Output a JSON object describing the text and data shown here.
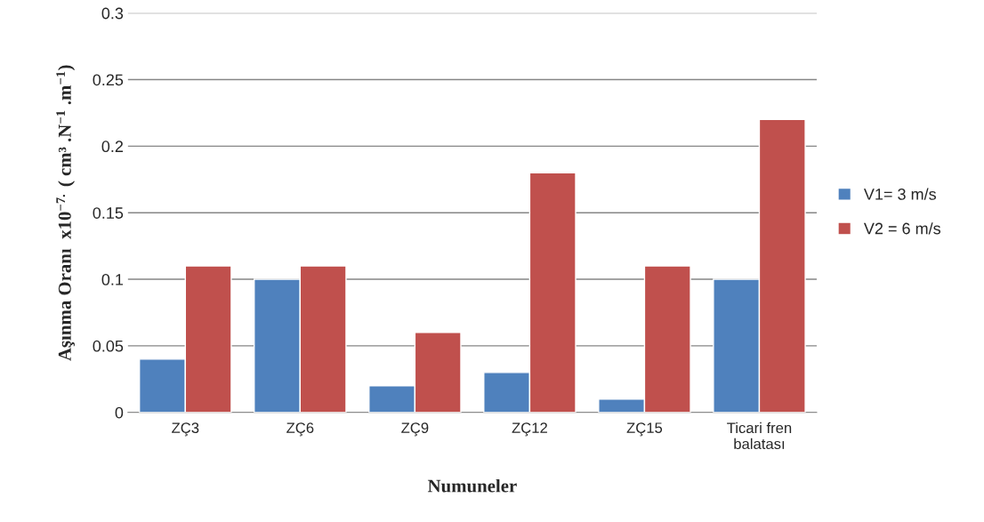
{
  "chart_data": {
    "type": "bar",
    "xlabel": "Numuneler",
    "ylabel": "Aşınma Oranı  x10$^{−7.}$ ( cm³ .N$^{−1}$ .m$^{−1}$)",
    "categories": [
      "ZÇ3",
      "ZÇ6",
      "ZÇ9",
      "ZÇ12",
      "ZÇ15",
      "Ticari fren\nbalatası"
    ],
    "series": [
      {
        "name": "V1= 3 m/s",
        "color": "#4f81bd",
        "values": [
          0.04,
          0.1,
          0.02,
          0.03,
          0.01,
          0.1
        ]
      },
      {
        "name": "V2 = 6 m/s",
        "color": "#c0504d",
        "values": [
          0.11,
          0.11,
          0.06,
          0.18,
          0.11,
          0.22
        ]
      }
    ],
    "ylim": [
      0,
      0.3
    ],
    "yticks": [
      0,
      0.05,
      0.1,
      0.15,
      0.2,
      0.25,
      0.3
    ],
    "grid": "y",
    "legend": "right"
  }
}
